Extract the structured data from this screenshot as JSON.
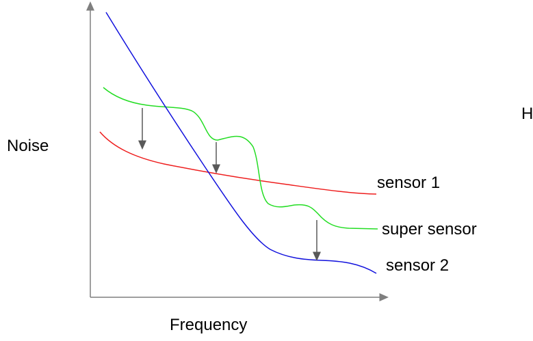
{
  "axes": {
    "y_label": "Noise",
    "x_label": "Frequency"
  },
  "curves": [
    {
      "id": "sensor1",
      "label": "sensor 1",
      "color": "#ee1c1c"
    },
    {
      "id": "super",
      "label": "super sensor",
      "color": "#22dd22"
    },
    {
      "id": "sensor2",
      "label": "sensor 2",
      "color": "#1111dd"
    }
  ],
  "edge_text": "H",
  "colors": {
    "axis": "#7f7f7f",
    "arrow": "#595959"
  }
}
